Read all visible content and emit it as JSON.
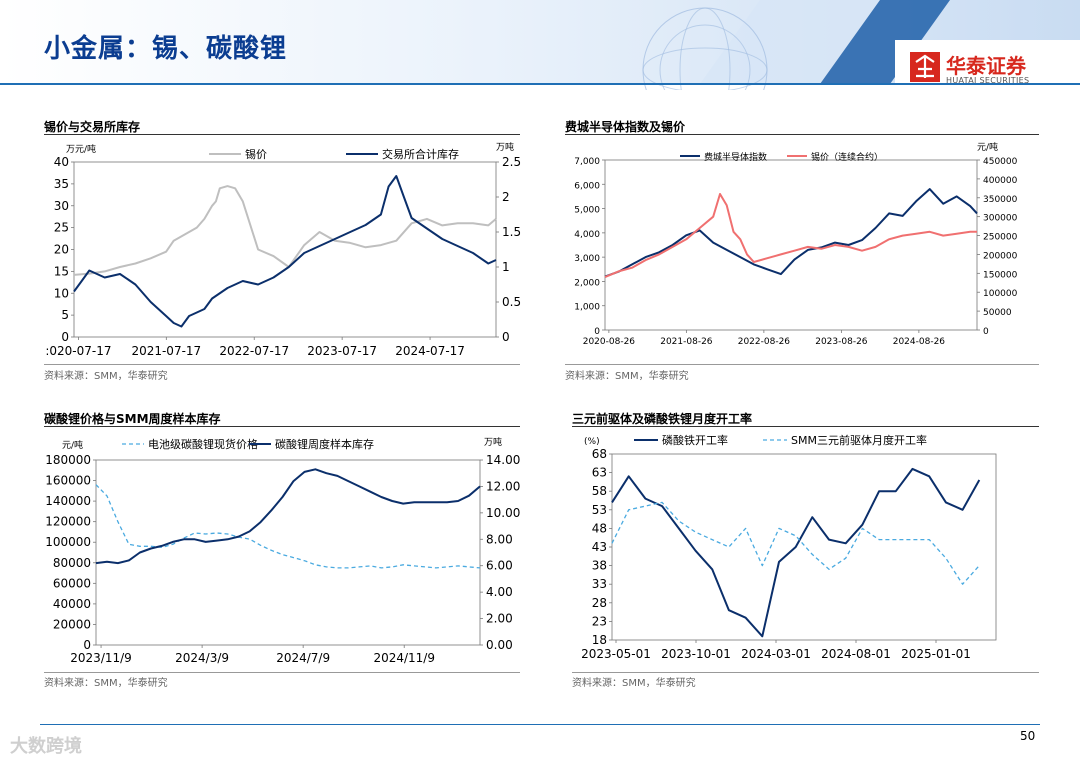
{
  "header": {
    "title": "小金属：锡、碳酸锂",
    "logo_cn": "华泰证券",
    "logo_en": "HUATAI SECURITIES"
  },
  "colors": {
    "navy": "#0b2f6b",
    "grey": "#bfbfbf",
    "red": "#f07070",
    "lightblue": "#4aaae0",
    "rule": "#1f6fb5"
  },
  "footer": {
    "page": "50",
    "watermark": "大数跨境"
  },
  "panels": [
    {
      "title": "锡价与交易所库存",
      "source": "资料来源：SMM，华泰研究"
    },
    {
      "title": "费城半导体指数及锡价",
      "source": "资料来源：SMM，华泰研究"
    },
    {
      "title": "碳酸锂价格与SMM周度样本库存",
      "source": "资料来源：SMM，华泰研究"
    },
    {
      "title": "三元前驱体及磷酸铁锂月度开工率",
      "source": "资料来源：SMM，华泰研究"
    }
  ],
  "chart_data": [
    {
      "type": "line",
      "title": "锡价与交易所库存",
      "left_unit": "万元/吨",
      "right_unit": "万吨",
      "ylim": [
        0,
        40
      ],
      "y_ticks": [
        "0",
        "5",
        "10",
        "15",
        "20",
        "25",
        "30",
        "35",
        "40"
      ],
      "y2lim": [
        0,
        2.5
      ],
      "y2_ticks": [
        "0",
        "0.5",
        "1",
        "1.5",
        "2",
        "2.5"
      ],
      "x_ticks": [
        ":020-07-17",
        "2021-07-17",
        "2022-07-17",
        "2023-07-17",
        "2024-07-17"
      ],
      "x_range": [
        0,
        55
      ],
      "series": [
        {
          "name": "锡价",
          "axis": "left",
          "color": "#bfbfbf",
          "x": [
            0,
            2,
            4,
            6,
            8,
            10,
            12,
            13,
            14,
            16,
            17,
            18,
            18.5,
            19,
            20,
            21,
            22,
            24,
            26,
            28,
            30,
            32,
            34,
            36,
            38,
            40,
            42,
            44,
            46,
            48,
            50,
            52,
            54,
            55
          ],
          "values": [
            14.2,
            14.5,
            15,
            16,
            16.8,
            18,
            19.5,
            22,
            23,
            25,
            27,
            30,
            31,
            34,
            34.5,
            34,
            31,
            20,
            18.5,
            16,
            21,
            24,
            22,
            21.5,
            20.5,
            21,
            22,
            26,
            27,
            25.5,
            26,
            26,
            25.5,
            27
          ]
        },
        {
          "name": "交易所合计库存",
          "axis": "right",
          "color": "#0b2f6b",
          "x": [
            0,
            1,
            2,
            3,
            4,
            6,
            8,
            10,
            11,
            12,
            13,
            14,
            15,
            16,
            17,
            18,
            20,
            22,
            24,
            26,
            28,
            30,
            32,
            34,
            36,
            38,
            40,
            41,
            42,
            43,
            44,
            46,
            48,
            50,
            52,
            54,
            55
          ],
          "values": [
            0.65,
            0.8,
            0.95,
            0.9,
            0.85,
            0.9,
            0.75,
            0.5,
            0.4,
            0.3,
            0.2,
            0.15,
            0.3,
            0.35,
            0.4,
            0.55,
            0.7,
            0.8,
            0.75,
            0.85,
            1.0,
            1.2,
            1.3,
            1.4,
            1.5,
            1.6,
            1.75,
            2.15,
            2.3,
            2.0,
            1.7,
            1.55,
            1.4,
            1.3,
            1.2,
            1.05,
            1.1
          ]
        }
      ]
    },
    {
      "type": "line",
      "title": "费城半导体指数及锡价",
      "right_unit": "元/吨",
      "ylim": [
        0,
        7000
      ],
      "y_ticks": [
        "0",
        "1,000",
        "2,000",
        "3,000",
        "4,000",
        "5,000",
        "6,000",
        "7,000"
      ],
      "y2lim": [
        0,
        450000
      ],
      "y2_ticks": [
        "0",
        "50000",
        "100000",
        "150000",
        "200000",
        "250000",
        "300000",
        "350000",
        "400000",
        "450000"
      ],
      "x_ticks": [
        "2020-08-26",
        "2021-08-26",
        "2022-08-26",
        "2023-08-26",
        "2024-08-26"
      ],
      "x_range": [
        0,
        55
      ],
      "series": [
        {
          "name": "费城半导体指数",
          "axis": "left",
          "color": "#0b2f6b",
          "x": [
            0,
            2,
            4,
            6,
            8,
            10,
            12,
            14,
            16,
            18,
            20,
            22,
            24,
            26,
            28,
            30,
            32,
            34,
            36,
            38,
            40,
            42,
            44,
            46,
            48,
            50,
            52,
            54,
            55
          ],
          "values": [
            2200,
            2400,
            2700,
            3000,
            3200,
            3500,
            3900,
            4100,
            3600,
            3300,
            3000,
            2700,
            2500,
            2300,
            2900,
            3300,
            3400,
            3600,
            3500,
            3700,
            4200,
            4800,
            4700,
            5300,
            5800,
            5200,
            5500,
            5100,
            4800
          ]
        },
        {
          "name": "锡价（连续合约）",
          "axis": "right",
          "color": "#f07070",
          "x": [
            0,
            2,
            4,
            6,
            8,
            10,
            12,
            14,
            16,
            17,
            18,
            19,
            20,
            21,
            22,
            24,
            26,
            28,
            30,
            32,
            34,
            36,
            38,
            40,
            42,
            44,
            46,
            48,
            50,
            52,
            54,
            55
          ],
          "values": [
            140000,
            155000,
            165000,
            185000,
            200000,
            220000,
            240000,
            270000,
            300000,
            360000,
            330000,
            260000,
            240000,
            200000,
            180000,
            190000,
            200000,
            210000,
            220000,
            215000,
            225000,
            220000,
            210000,
            220000,
            240000,
            250000,
            255000,
            260000,
            250000,
            255000,
            260000,
            260000
          ]
        }
      ]
    },
    {
      "type": "line",
      "title": "碳酸锂价格与SMM周度样本库存",
      "left_unit": "元/吨",
      "right_unit": "万吨",
      "ylim": [
        0,
        180000
      ],
      "y_ticks": [
        "0",
        "20000",
        "40000",
        "60000",
        "80000",
        "100000",
        "120000",
        "140000",
        "160000",
        "180000"
      ],
      "y2lim": [
        0,
        14
      ],
      "y2_ticks": [
        "0.00",
        "2.00",
        "4.00",
        "6.00",
        "8.00",
        "10.00",
        "12.00",
        "14.00"
      ],
      "x_ticks": [
        "2023/11/9",
        "2024/3/9",
        "2024/7/9",
        "2024/11/9"
      ],
      "x_range": [
        0,
        70
      ],
      "series": [
        {
          "name": "电池级碳酸锂现货价格",
          "axis": "left",
          "color": "#4aaae0",
          "dashed": true,
          "x": [
            0,
            2,
            4,
            6,
            8,
            10,
            12,
            14,
            16,
            18,
            20,
            22,
            24,
            26,
            28,
            30,
            32,
            34,
            36,
            38,
            40,
            42,
            44,
            46,
            48,
            50,
            52,
            54,
            56,
            58,
            60,
            62,
            64,
            66,
            68,
            70
          ],
          "values": [
            156000,
            145000,
            120000,
            98000,
            96000,
            96000,
            95000,
            98000,
            104000,
            109000,
            108000,
            109000,
            108000,
            105000,
            103000,
            97000,
            92000,
            88000,
            85000,
            82000,
            78000,
            76000,
            75000,
            75000,
            76000,
            77000,
            75000,
            76000,
            78000,
            77000,
            76000,
            75000,
            76000,
            77000,
            76000,
            75000
          ]
        },
        {
          "name": "碳酸锂周度样本库存",
          "axis": "right",
          "color": "#0b2f6b",
          "x": [
            0,
            2,
            4,
            6,
            8,
            10,
            12,
            14,
            16,
            18,
            20,
            22,
            24,
            26,
            28,
            30,
            32,
            34,
            36,
            38,
            40,
            42,
            44,
            46,
            48,
            50,
            52,
            54,
            56,
            58,
            60,
            62,
            64,
            66,
            68,
            70
          ],
          "values": [
            6.2,
            6.3,
            6.2,
            6.4,
            7.0,
            7.3,
            7.5,
            7.8,
            8.0,
            8.0,
            7.8,
            7.9,
            8.0,
            8.2,
            8.6,
            9.3,
            10.2,
            11.2,
            12.4,
            13.1,
            13.3,
            13.0,
            12.8,
            12.4,
            12.0,
            11.6,
            11.2,
            10.9,
            10.7,
            10.8,
            10.8,
            10.8,
            10.8,
            10.9,
            11.3,
            12.0
          ]
        }
      ]
    },
    {
      "type": "line",
      "title": "三元前驱体及磷酸铁锂月度开工率",
      "left_unit": "(%)",
      "ylim": [
        18,
        68
      ],
      "y_ticks": [
        "18",
        "23",
        "28",
        "33",
        "38",
        "43",
        "48",
        "53",
        "58",
        "63",
        "68"
      ],
      "x_ticks": [
        "2023-05-01",
        "2023-10-01",
        "2024-03-01",
        "2024-08-01",
        "2025-01-01"
      ],
      "x_range": [
        0,
        23
      ],
      "series": [
        {
          "name": "磷酸铁开工率",
          "axis": "left",
          "color": "#0b2f6b",
          "x": [
            0,
            1,
            2,
            3,
            4,
            5,
            6,
            7,
            8,
            9,
            10,
            11,
            12,
            13,
            14,
            15,
            16,
            17,
            18,
            19,
            20,
            21,
            22
          ],
          "values": [
            55,
            62,
            56,
            54,
            48,
            42,
            37,
            26,
            24,
            19,
            39,
            43,
            51,
            45,
            44,
            49,
            58,
            58,
            64,
            62,
            55,
            53,
            61
          ]
        },
        {
          "name": "SMM三元前驱体月度开工率",
          "axis": "left",
          "color": "#4aaae0",
          "dashed": true,
          "x": [
            0,
            1,
            2,
            3,
            4,
            5,
            6,
            7,
            8,
            9,
            10,
            11,
            12,
            13,
            14,
            15,
            16,
            17,
            18,
            19,
            20,
            21,
            22
          ],
          "values": [
            44,
            53,
            54,
            55,
            50,
            47,
            45,
            43,
            48,
            38,
            48,
            46,
            41,
            37,
            40,
            48,
            45,
            45,
            45,
            45,
            40,
            33,
            38
          ]
        }
      ]
    }
  ]
}
